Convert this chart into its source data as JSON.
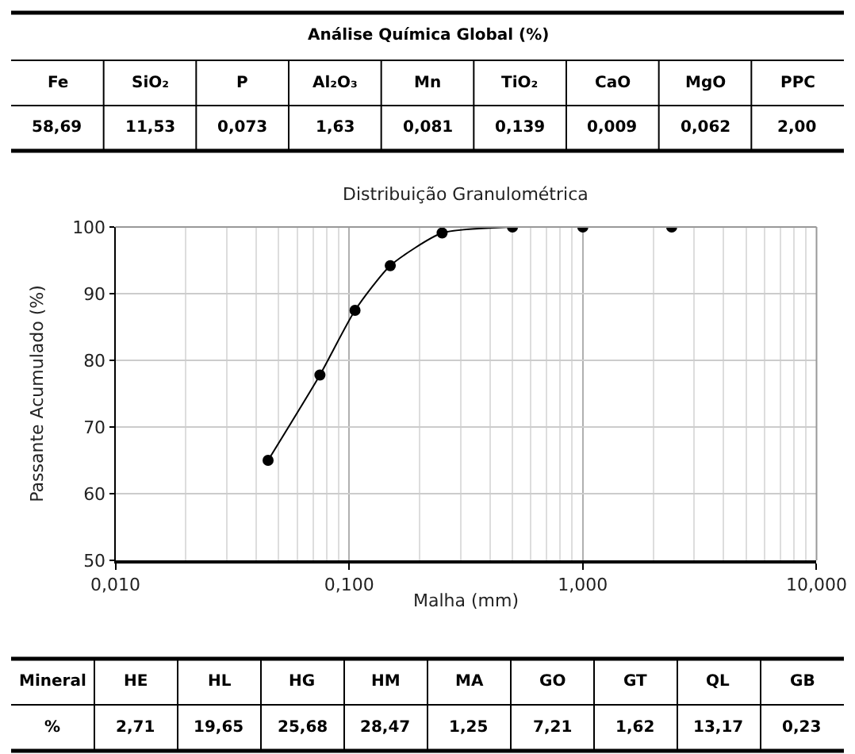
{
  "chart_data": [
    {
      "type": "other",
      "title": "Análise Química Global (%)",
      "annotations": [
        "Fe",
        "SiO₂",
        "P",
        "Al₂O₃",
        "Mn",
        "TiO₂",
        "CaO",
        "MgO",
        "PPC",
        "58,69",
        "11,53",
        "0,073",
        "1,63",
        "0,081",
        "0,139",
        "0,009",
        "0,062",
        "2,00"
      ]
    },
    {
      "type": "line",
      "title": "Distribuição Granulométrica",
      "xlabel": "Malha (mm)",
      "ylabel": "Passante Acumulado (%)",
      "x": [
        0.045,
        0.075,
        0.106,
        0.15,
        0.25,
        0.5,
        1.0,
        2.4
      ],
      "series": [
        {
          "color": "#000000",
          "values": [
            65,
            77.8,
            87.5,
            94.2,
            99.1,
            100,
            100,
            100
          ]
        }
      ],
      "xlim": [
        0.01,
        10
      ],
      "xticks": [
        {
          "value": 0.01,
          "label": "0,010"
        },
        {
          "value": 0.1,
          "label": "0,100"
        },
        {
          "value": 1,
          "label": "1,000"
        },
        {
          "value": 10,
          "label": "10,000"
        }
      ],
      "ylim": [
        50,
        100
      ],
      "yticks": [
        50,
        60,
        70,
        80,
        90,
        100
      ],
      "log": "x",
      "grid": true,
      "marker": "circle"
    },
    {
      "type": "other",
      "annotations": [
        "Mineral",
        "HE",
        "HL",
        "HG",
        "HM",
        "MA",
        "GO",
        "GT",
        "QL",
        "GB",
        "%",
        "2,71",
        "19,65",
        "25,68",
        "28,47",
        "1,25",
        "7,21",
        "1,62",
        "13,17",
        "0,23"
      ]
    }
  ]
}
